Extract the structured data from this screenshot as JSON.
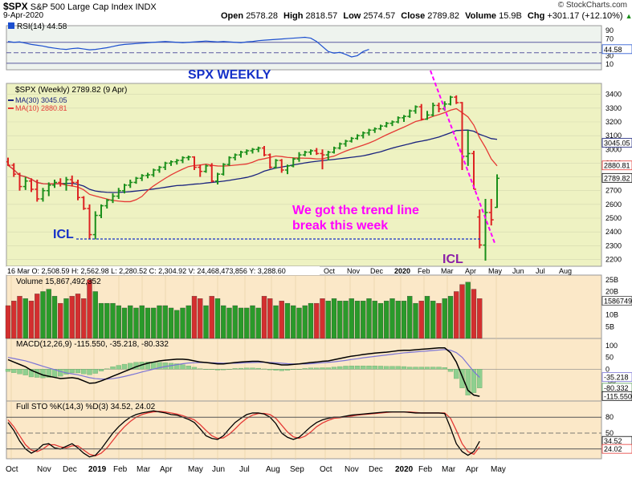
{
  "header": {
    "symbol": "$SPX",
    "name": "S&P 500 Large Cap Index",
    "exchange": "INDX",
    "date": "9-Apr-2020",
    "open_label": "Open",
    "open": "2578.28",
    "high_label": "High",
    "high": "2818.57",
    "low_label": "Low",
    "low": "2574.57",
    "close_label": "Close",
    "close": "2789.82",
    "volume_label": "Volume",
    "volume": "15.9B",
    "chg_label": "Chg",
    "chg": "+301.17 (+12.10%)",
    "chg_arrow": "▲",
    "copyright": "© StockCharts.com"
  },
  "colors": {
    "up": "#1a8f1a",
    "down": "#dd2222",
    "ma30": "#1a237e",
    "ma10": "#e53935",
    "rsi": "#1c4fcf",
    "annotation_blue": "#1530c8",
    "annotation_magenta": "#ff00ff",
    "panel_bg": "#e6f0c4",
    "price_bg": "#eef2c2"
  },
  "chart_data": [
    {
      "type": "line",
      "panel": "RSI",
      "legend": "RSI(14) 44.58",
      "value_tag": "44.58",
      "ylim": [
        0,
        100
      ],
      "ticks": [
        "90",
        "70",
        "50",
        "30",
        "10"
      ],
      "values": [
        64,
        62,
        63,
        60,
        57,
        55,
        53,
        50,
        48,
        46,
        45,
        47,
        48,
        46,
        44,
        45,
        47,
        49,
        52,
        55,
        57,
        58,
        59,
        60,
        61,
        62,
        63,
        64,
        63,
        62,
        61,
        62,
        63,
        64,
        65,
        64,
        63,
        64,
        63,
        62,
        61,
        63,
        64,
        66,
        67,
        68,
        69,
        70,
        71,
        72,
        73,
        74,
        72,
        64,
        52,
        40,
        36,
        38,
        33,
        27,
        30,
        40,
        45
      ]
    },
    {
      "type": "ohlc",
      "panel": "Price",
      "title": "SPX WEEKLY",
      "legend": [
        "$SPX (Weekly) 2789.82 (9 Apr)",
        "MA(30) 3045.05",
        "MA(10) 2880.81"
      ],
      "value_tags": [
        "3045.05",
        "2880.81",
        "2789.82"
      ],
      "ylim": [
        2150,
        3480
      ],
      "ticks": [
        "3400",
        "3300",
        "3200",
        "3100",
        "3000",
        "2900",
        "2800",
        "2700",
        "2600",
        "2500",
        "2400",
        "2300",
        "2200"
      ],
      "x_labels_top_panel": [
        "Oct",
        "Nov",
        "Dec",
        "2020",
        "Feb",
        "Mar",
        "Apr",
        "May",
        "Jun",
        "Jul",
        "Aug"
      ],
      "data_window": "16 Mar O: 2,508.59  H: 2,562.98  L: 2,280.52  C: 2,304.92  V: 24,468,473,856  Y: 3,288.60",
      "bars": [
        {
          "o": 2910,
          "h": 2940,
          "l": 2880,
          "c": 2885
        },
        {
          "o": 2885,
          "h": 2900,
          "l": 2800,
          "c": 2820
        },
        {
          "o": 2820,
          "h": 2830,
          "l": 2700,
          "c": 2730
        },
        {
          "o": 2730,
          "h": 2800,
          "l": 2705,
          "c": 2770
        },
        {
          "o": 2770,
          "h": 2790,
          "l": 2690,
          "c": 2710
        },
        {
          "o": 2710,
          "h": 2780,
          "l": 2620,
          "c": 2640
        },
        {
          "o": 2640,
          "h": 2720,
          "l": 2620,
          "c": 2700
        },
        {
          "o": 2700,
          "h": 2760,
          "l": 2660,
          "c": 2740
        },
        {
          "o": 2740,
          "h": 2780,
          "l": 2720,
          "c": 2760
        },
        {
          "o": 2760,
          "h": 2790,
          "l": 2730,
          "c": 2750
        },
        {
          "o": 2750,
          "h": 2800,
          "l": 2700,
          "c": 2780
        },
        {
          "o": 2780,
          "h": 2810,
          "l": 2730,
          "c": 2760
        },
        {
          "o": 2760,
          "h": 2780,
          "l": 2630,
          "c": 2650
        },
        {
          "o": 2650,
          "h": 2660,
          "l": 2560,
          "c": 2570
        },
        {
          "o": 2570,
          "h": 2600,
          "l": 2350,
          "c": 2380
        },
        {
          "o": 2380,
          "h": 2550,
          "l": 2346,
          "c": 2520
        },
        {
          "o": 2520,
          "h": 2600,
          "l": 2500,
          "c": 2590
        },
        {
          "o": 2590,
          "h": 2640,
          "l": 2570,
          "c": 2630
        },
        {
          "o": 2630,
          "h": 2680,
          "l": 2610,
          "c": 2660
        },
        {
          "o": 2660,
          "h": 2720,
          "l": 2640,
          "c": 2700
        },
        {
          "o": 2700,
          "h": 2750,
          "l": 2680,
          "c": 2740
        },
        {
          "o": 2740,
          "h": 2780,
          "l": 2720,
          "c": 2760
        },
        {
          "o": 2760,
          "h": 2800,
          "l": 2750,
          "c": 2790
        },
        {
          "o": 2790,
          "h": 2820,
          "l": 2770,
          "c": 2810
        },
        {
          "o": 2810,
          "h": 2830,
          "l": 2790,
          "c": 2815
        },
        {
          "o": 2815,
          "h": 2860,
          "l": 2800,
          "c": 2850
        },
        {
          "o": 2850,
          "h": 2880,
          "l": 2830,
          "c": 2870
        },
        {
          "o": 2870,
          "h": 2910,
          "l": 2850,
          "c": 2900
        },
        {
          "o": 2900,
          "h": 2920,
          "l": 2880,
          "c": 2910
        },
        {
          "o": 2910,
          "h": 2930,
          "l": 2890,
          "c": 2920
        },
        {
          "o": 2920,
          "h": 2950,
          "l": 2900,
          "c": 2940
        },
        {
          "o": 2940,
          "h": 2955,
          "l": 2920,
          "c": 2945
        },
        {
          "o": 2945,
          "h": 2950,
          "l": 2850,
          "c": 2870
        },
        {
          "o": 2870,
          "h": 2890,
          "l": 2800,
          "c": 2840
        },
        {
          "o": 2840,
          "h": 2890,
          "l": 2830,
          "c": 2880
        },
        {
          "o": 2880,
          "h": 2900,
          "l": 2760,
          "c": 2770
        },
        {
          "o": 2770,
          "h": 2830,
          "l": 2745,
          "c": 2820
        },
        {
          "o": 2820,
          "h": 2900,
          "l": 2810,
          "c": 2890
        },
        {
          "o": 2890,
          "h": 2950,
          "l": 2880,
          "c": 2940
        },
        {
          "o": 2940,
          "h": 2970,
          "l": 2920,
          "c": 2960
        },
        {
          "o": 2960,
          "h": 2990,
          "l": 2940,
          "c": 2980
        },
        {
          "o": 2980,
          "h": 3000,
          "l": 2960,
          "c": 2990
        },
        {
          "o": 2990,
          "h": 3010,
          "l": 2970,
          "c": 3000
        },
        {
          "o": 3000,
          "h": 3020,
          "l": 2980,
          "c": 3010
        },
        {
          "o": 3010,
          "h": 3025,
          "l": 2950,
          "c": 2960
        },
        {
          "o": 2960,
          "h": 2970,
          "l": 2860,
          "c": 2870
        },
        {
          "o": 2870,
          "h": 2930,
          "l": 2860,
          "c": 2920
        },
        {
          "o": 2920,
          "h": 2930,
          "l": 2830,
          "c": 2850
        },
        {
          "o": 2850,
          "h": 2890,
          "l": 2820,
          "c": 2880
        },
        {
          "o": 2880,
          "h": 2940,
          "l": 2870,
          "c": 2930
        },
        {
          "o": 2930,
          "h": 2980,
          "l": 2910,
          "c": 2960
        },
        {
          "o": 2960,
          "h": 2990,
          "l": 2950,
          "c": 2980
        },
        {
          "o": 2980,
          "h": 3000,
          "l": 2960,
          "c": 2990
        },
        {
          "o": 2990,
          "h": 3010,
          "l": 2960,
          "c": 2970
        },
        {
          "o": 2970,
          "h": 3000,
          "l": 2855,
          "c": 2960
        },
        {
          "o": 2960,
          "h": 2990,
          "l": 2920,
          "c": 2980
        },
        {
          "o": 2980,
          "h": 3020,
          "l": 2970,
          "c": 3010
        },
        {
          "o": 3010,
          "h": 3050,
          "l": 3000,
          "c": 3040
        },
        {
          "o": 3040,
          "h": 3070,
          "l": 3020,
          "c": 3060
        },
        {
          "o": 3060,
          "h": 3090,
          "l": 3050,
          "c": 3080
        },
        {
          "o": 3080,
          "h": 3110,
          "l": 3070,
          "c": 3100
        },
        {
          "o": 3100,
          "h": 3130,
          "l": 3080,
          "c": 3120
        },
        {
          "o": 3120,
          "h": 3150,
          "l": 3100,
          "c": 3140
        },
        {
          "o": 3140,
          "h": 3160,
          "l": 3120,
          "c": 3150
        },
        {
          "o": 3150,
          "h": 3180,
          "l": 3140,
          "c": 3170
        },
        {
          "o": 3170,
          "h": 3200,
          "l": 3160,
          "c": 3190
        },
        {
          "o": 3190,
          "h": 3210,
          "l": 3170,
          "c": 3200
        },
        {
          "o": 3200,
          "h": 3240,
          "l": 3190,
          "c": 3230
        },
        {
          "o": 3230,
          "h": 3250,
          "l": 3200,
          "c": 3240
        },
        {
          "o": 3240,
          "h": 3290,
          "l": 3230,
          "c": 3280
        },
        {
          "o": 3280,
          "h": 3320,
          "l": 3260,
          "c": 3310
        },
        {
          "o": 3310,
          "h": 3330,
          "l": 3210,
          "c": 3220
        },
        {
          "o": 3220,
          "h": 3280,
          "l": 3215,
          "c": 3250
        },
        {
          "o": 3250,
          "h": 3340,
          "l": 3240,
          "c": 3320
        },
        {
          "o": 3320,
          "h": 3340,
          "l": 3270,
          "c": 3295
        },
        {
          "o": 3295,
          "h": 3350,
          "l": 3280,
          "c": 3330
        },
        {
          "o": 3330,
          "h": 3390,
          "l": 3320,
          "c": 3380
        },
        {
          "o": 3380,
          "h": 3393,
          "l": 3330,
          "c": 3340
        },
        {
          "o": 3340,
          "h": 3345,
          "l": 2850,
          "c": 2950
        },
        {
          "o": 2950,
          "h": 3140,
          "l": 2880,
          "c": 2970
        },
        {
          "o": 2970,
          "h": 2990,
          "l": 2710,
          "c": 2710
        },
        {
          "o": 2508.59,
          "h": 2562.98,
          "l": 2280.52,
          "c": 2304.92
        },
        {
          "o": 2304,
          "h": 2640,
          "l": 2191,
          "c": 2541
        },
        {
          "o": 2541,
          "h": 2640,
          "l": 2447,
          "c": 2488
        },
        {
          "o": 2578.28,
          "h": 2818.57,
          "l": 2574.57,
          "c": 2789.82
        }
      ]
    },
    {
      "type": "bar",
      "panel": "Volume",
      "legend": "Volume 15,867,492,352",
      "value_tag": "15867492352",
      "ylim": [
        0,
        27
      ],
      "ticks": [
        "25B",
        "20B",
        "15B",
        "10B",
        "5B"
      ],
      "values": [
        14,
        16,
        18,
        17,
        16,
        19,
        20,
        21,
        18,
        15,
        17,
        18,
        19,
        17,
        25,
        20,
        15,
        15,
        15,
        14,
        13,
        14,
        13,
        14,
        13,
        13,
        14,
        14,
        13,
        12,
        13,
        14,
        18,
        17,
        14,
        18,
        17,
        14,
        13,
        14,
        13,
        13,
        14,
        13,
        18,
        17,
        14,
        16,
        15,
        14,
        13,
        14,
        15,
        15,
        17,
        16,
        17,
        16,
        16,
        17,
        16,
        16,
        17,
        16,
        15,
        16,
        17,
        16,
        16,
        18,
        15,
        16,
        18,
        16,
        15,
        17,
        18,
        20,
        23,
        24,
        21,
        17
      ]
    },
    {
      "type": "line",
      "panel": "MACD",
      "legend": "MACD(12,26,9) -115.550, -35.218, -80.332",
      "value_tags": [
        "-35.218",
        "-80.332",
        "-115.550"
      ],
      "ylim": [
        -135,
        130
      ],
      "ticks": [
        "100",
        "50",
        "0",
        "-50",
        "-100"
      ],
      "macd": [
        40,
        30,
        20,
        10,
        -5,
        -15,
        -25,
        -30,
        -35,
        -40,
        -38,
        -36,
        -40,
        -50,
        -60,
        -58,
        -50,
        -40,
        -30,
        -20,
        -10,
        0,
        10,
        18,
        25,
        30,
        35,
        38,
        40,
        42,
        42,
        40,
        35,
        30,
        28,
        25,
        22,
        22,
        25,
        28,
        30,
        32,
        33,
        33,
        30,
        25,
        22,
        18,
        18,
        20,
        22,
        25,
        28,
        30,
        33,
        35,
        40,
        45,
        50,
        55,
        58,
        62,
        65,
        68,
        70,
        72,
        75,
        78,
        80,
        80,
        82,
        84,
        86,
        88,
        90,
        90,
        70,
        30,
        -30,
        -90,
        -110,
        -115
      ],
      "signal": [
        50,
        45,
        40,
        35,
        28,
        20,
        12,
        5,
        -2,
        -10,
        -16,
        -20,
        -24,
        -30,
        -36,
        -40,
        -42,
        -42,
        -40,
        -36,
        -31,
        -25,
        -19,
        -12,
        -6,
        0,
        6,
        11,
        15,
        19,
        23,
        26,
        27,
        28,
        28,
        27,
        26,
        25,
        25,
        25,
        26,
        27,
        28,
        29,
        29,
        28,
        27,
        25,
        23,
        22,
        22,
        22,
        23,
        25,
        27,
        29,
        31,
        34,
        37,
        41,
        44,
        48,
        51,
        54,
        57,
        60,
        63,
        66,
        69,
        71,
        73,
        75,
        77,
        79,
        81,
        83,
        80,
        70,
        50,
        20,
        -10,
        -35
      ],
      "histogram": [
        -10,
        -15,
        -20,
        -25,
        -33,
        -35,
        -37,
        -35,
        -33,
        -30,
        -22,
        -16,
        -16,
        -20,
        -24,
        -18,
        -8,
        2,
        10,
        16,
        21,
        25,
        29,
        30,
        31,
        30,
        29,
        27,
        25,
        23,
        19,
        14,
        8,
        2,
        0,
        -2,
        -4,
        -3,
        0,
        3,
        4,
        5,
        5,
        4,
        1,
        -3,
        -5,
        -7,
        -5,
        -2,
        0,
        3,
        5,
        5,
        6,
        6,
        9,
        11,
        13,
        14,
        14,
        14,
        14,
        14,
        13,
        12,
        12,
        12,
        11,
        9,
        9,
        9,
        9,
        9,
        9,
        7,
        -10,
        -40,
        -80,
        -110,
        -100,
        -80
      ]
    },
    {
      "type": "line",
      "panel": "Full STO",
      "legend": "Full STO %K(14,3) %D(3) 34.52, 24.02",
      "value_tags": [
        "34.52",
        "24.02"
      ],
      "ylim": [
        0,
        100
      ],
      "ticks": [
        "80",
        "50",
        "20"
      ],
      "k": [
        70,
        55,
        35,
        20,
        12,
        18,
        28,
        30,
        22,
        20,
        25,
        30,
        22,
        12,
        5,
        8,
        20,
        35,
        50,
        62,
        72,
        80,
        85,
        88,
        90,
        92,
        90,
        88,
        85,
        84,
        80,
        76,
        70,
        58,
        45,
        40,
        38,
        45,
        58,
        70,
        78,
        85,
        88,
        88,
        86,
        80,
        68,
        50,
        42,
        38,
        42,
        52,
        62,
        70,
        75,
        78,
        80,
        80,
        82,
        84,
        85,
        86,
        87,
        88,
        89,
        90,
        90,
        90,
        90,
        89,
        88,
        88,
        88,
        88,
        88,
        87,
        60,
        30,
        15,
        8,
        15,
        34.52
      ],
      "d": [
        75,
        62,
        45,
        28,
        18,
        15,
        20,
        28,
        28,
        24,
        22,
        26,
        26,
        18,
        10,
        7,
        12,
        22,
        36,
        50,
        62,
        72,
        80,
        85,
        88,
        90,
        91,
        90,
        88,
        86,
        83,
        79,
        75,
        66,
        55,
        45,
        40,
        41,
        48,
        58,
        69,
        78,
        84,
        87,
        87,
        85,
        78,
        65,
        52,
        43,
        40,
        44,
        52,
        62,
        69,
        74,
        78,
        79,
        81,
        82,
        84,
        85,
        86,
        87,
        88,
        89,
        90,
        90,
        90,
        90,
        89,
        88,
        88,
        88,
        88,
        88,
        78,
        55,
        30,
        15,
        10,
        24.02
      ]
    }
  ],
  "annotations": {
    "title": "SPX WEEKLY",
    "icl_left": "ICL",
    "icl_right": "ICL",
    "note_line1": "We got the trend line",
    "note_line2": "break this week"
  },
  "x_axis_bottom": [
    "Oct",
    "Nov",
    "Dec",
    "2019",
    "Feb",
    "Mar",
    "Apr",
    "May",
    "Jun",
    "Jul",
    "Aug",
    "Sep",
    "Oct",
    "Nov",
    "Dec",
    "2020",
    "Feb",
    "Mar",
    "Apr",
    "May"
  ]
}
